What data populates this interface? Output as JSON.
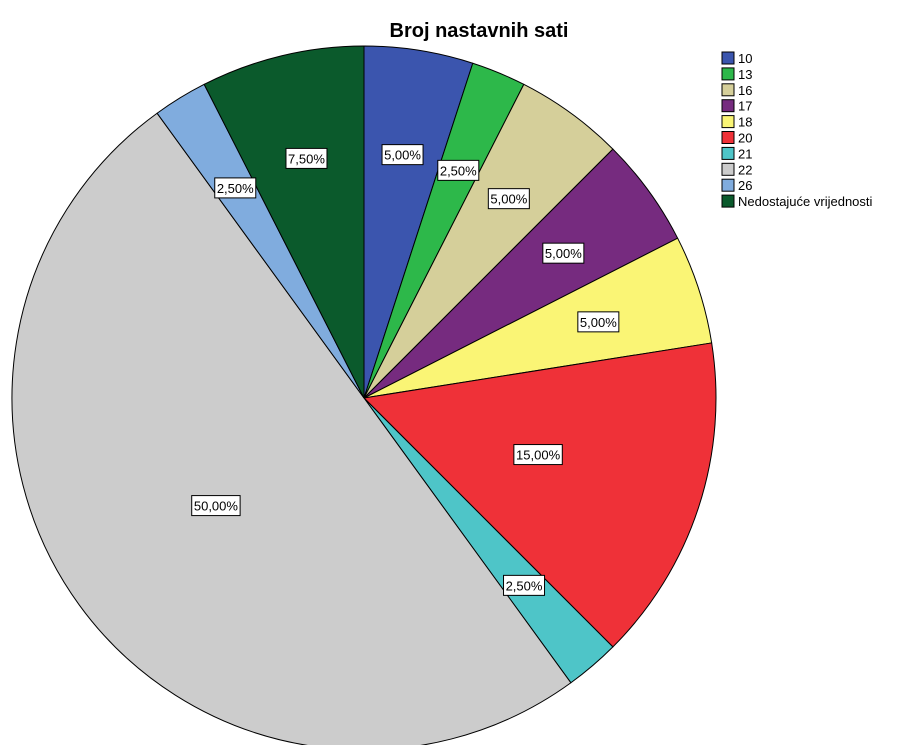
{
  "chart_data": {
    "type": "pie",
    "title": "Broj nastavnih sati",
    "legend_position": "top-right",
    "slices": [
      {
        "label": "10",
        "value": 5.0,
        "display": "5,00%",
        "color": "#3b55ae"
      },
      {
        "label": "13",
        "value": 2.5,
        "display": "2,50%",
        "color": "#2db84a"
      },
      {
        "label": "16",
        "value": 5.0,
        "display": "5,00%",
        "color": "#d5cf9a"
      },
      {
        "label": "17",
        "value": 5.0,
        "display": "5,00%",
        "color": "#762b7f"
      },
      {
        "label": "18",
        "value": 5.0,
        "display": "5,00%",
        "color": "#faf575"
      },
      {
        "label": "20",
        "value": 15.0,
        "display": "15,00%",
        "color": "#ef3138"
      },
      {
        "label": "21",
        "value": 2.5,
        "display": "2,50%",
        "color": "#4ec5c8"
      },
      {
        "label": "22",
        "value": 50.0,
        "display": "50,00%",
        "color": "#cccccc"
      },
      {
        "label": "26",
        "value": 2.5,
        "display": "2,50%",
        "color": "#80acde"
      },
      {
        "label": "Nedostajuće vrijednosti",
        "value": 7.5,
        "display": "7,50%",
        "color": "#0b5a2c"
      }
    ]
  }
}
